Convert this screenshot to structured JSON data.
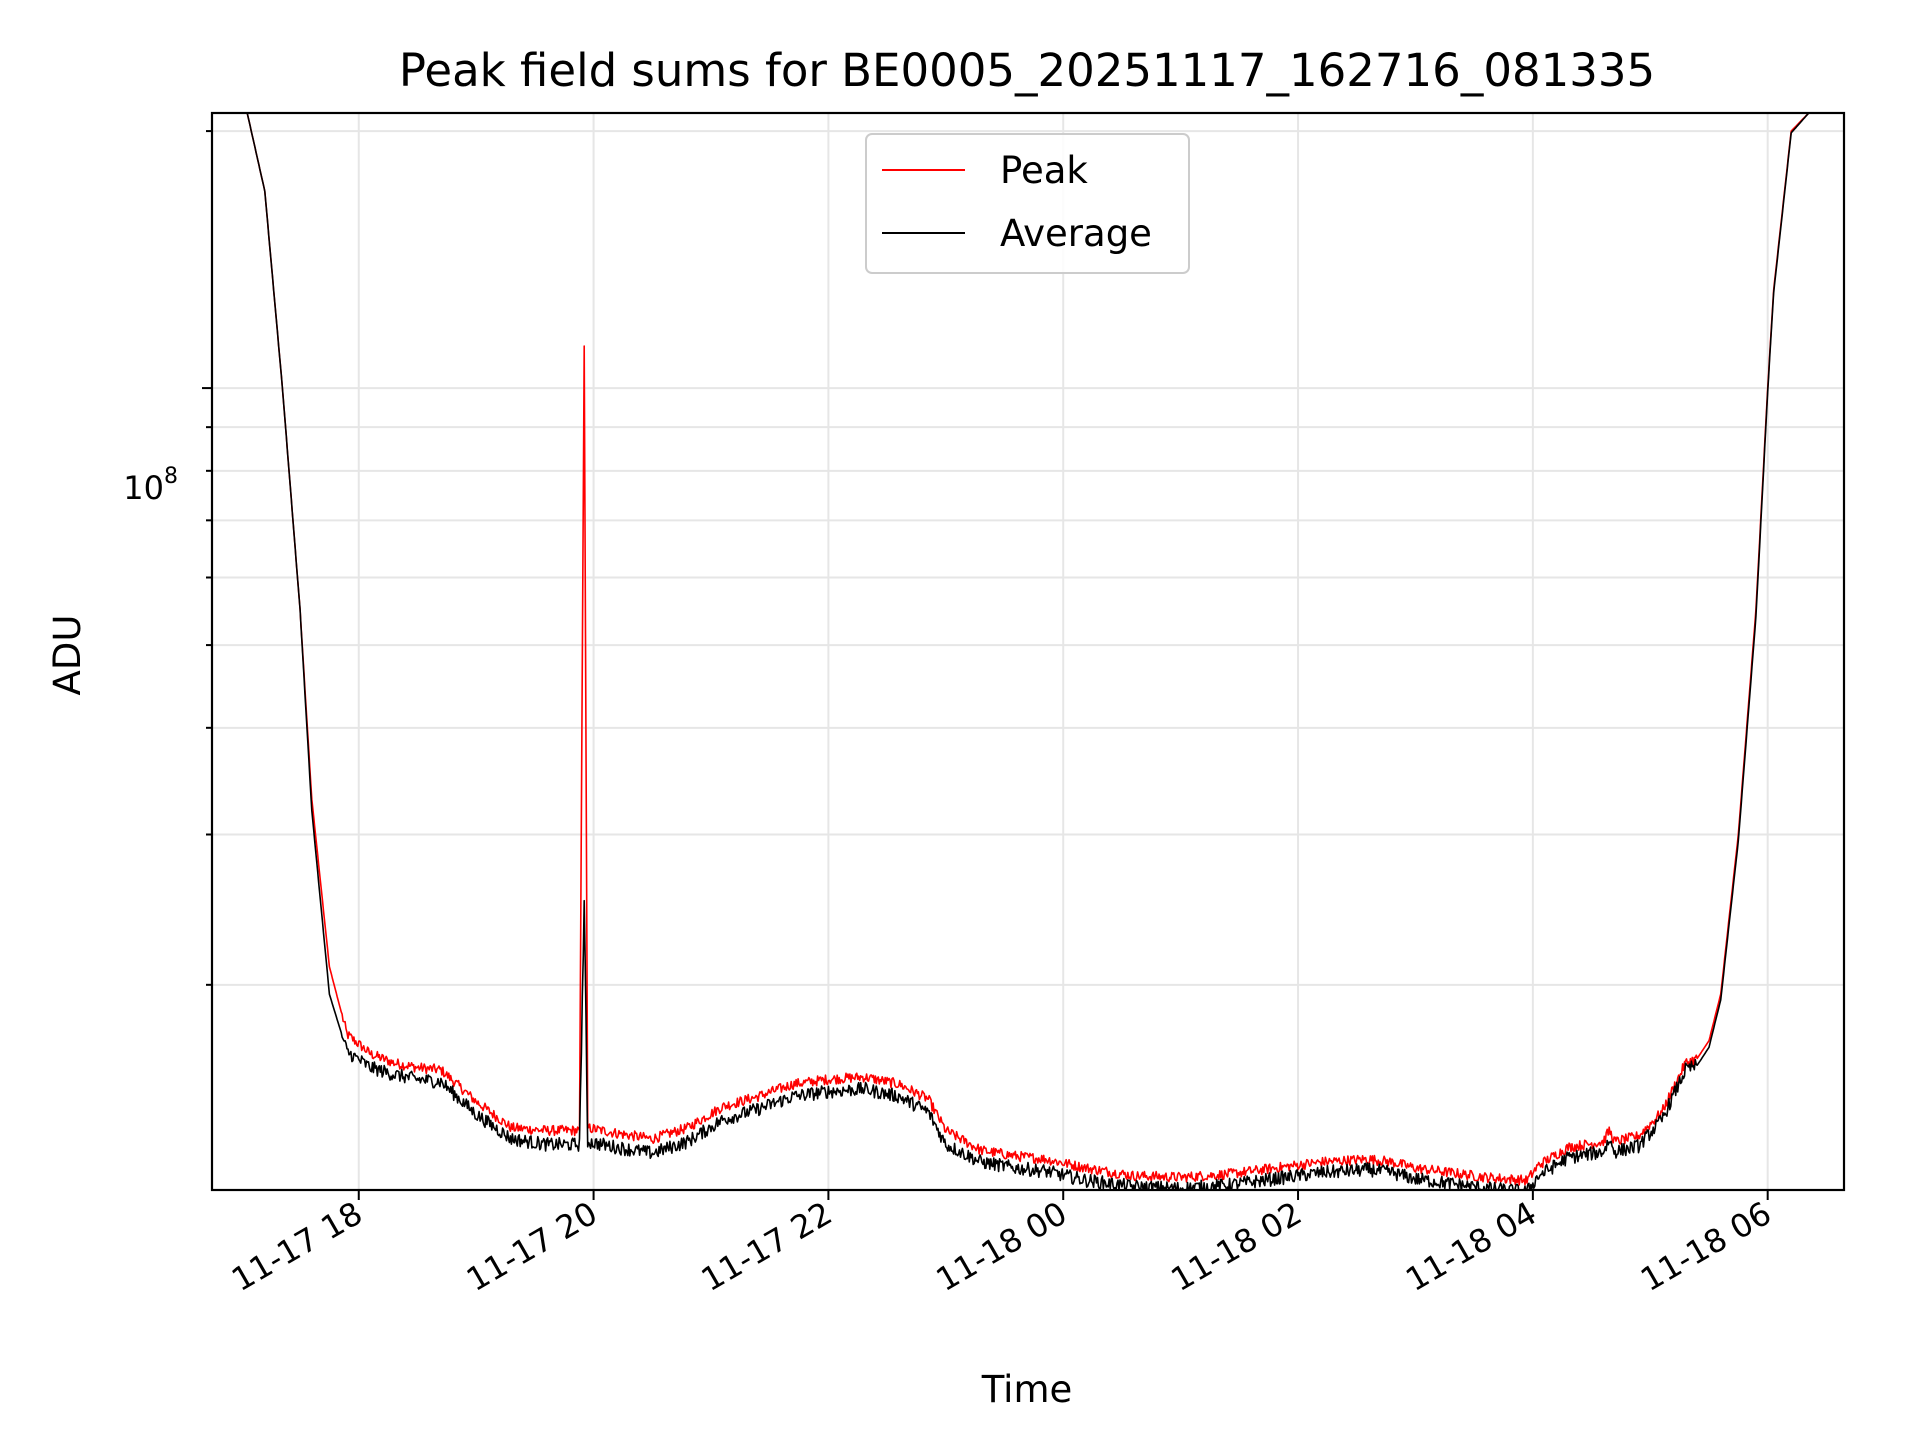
{
  "chart_data": {
    "type": "line",
    "title": "Peak field sums for BE0005_20251117_162716_081335",
    "xlabel": "Time",
    "ylabel": "ADU",
    "yscale": "log",
    "ylim": [
      11500000,
      210000000
    ],
    "xlim_hours": [
      16.75,
      30.65
    ],
    "grid": true,
    "legend_position": "top-center",
    "x_ticks": [
      {
        "label": "11-17 18",
        "hour": 18
      },
      {
        "label": "11-17 20",
        "hour": 20
      },
      {
        "label": "11-17 22",
        "hour": 22
      },
      {
        "label": "11-18 00",
        "hour": 24
      },
      {
        "label": "11-18 02",
        "hour": 26
      },
      {
        "label": "11-18 04",
        "hour": 28
      },
      {
        "label": "11-18 06",
        "hour": 30
      }
    ],
    "y_major_tick": {
      "base": "10",
      "exponent": "8",
      "value": 100000000
    },
    "y_minor_ticks": [
      20000000,
      30000000,
      40000000,
      50000000,
      60000000,
      70000000,
      80000000,
      90000000,
      200000000
    ],
    "series": [
      {
        "name": "Peak",
        "color": "#ff0000",
        "x_hours": [
          16.75,
          17.05,
          17.2,
          17.35,
          17.5,
          17.6,
          17.75,
          17.9,
          18.1,
          18.3,
          18.5,
          18.7,
          19.0,
          19.3,
          19.6,
          19.88,
          19.92,
          19.95,
          20.2,
          20.5,
          20.8,
          21.1,
          21.4,
          21.7,
          22.0,
          22.3,
          22.6,
          22.85,
          23.0,
          23.3,
          23.6,
          23.85,
          24.2,
          24.6,
          25.0,
          25.4,
          25.8,
          26.2,
          26.6,
          26.8,
          27.0,
          27.3,
          27.6,
          27.95,
          28.05,
          28.3,
          28.6,
          28.65,
          28.7,
          28.9,
          29.1,
          29.3,
          29.4,
          29.5,
          29.6,
          29.75,
          29.9,
          30.0,
          30.05,
          30.2,
          30.35,
          30.65
        ],
        "values": [
          210000000,
          210000000,
          170000000,
          100000000,
          55000000,
          33000000,
          21000000,
          17500000,
          16600000,
          16200000,
          16000000,
          15900000,
          14600000,
          13600000,
          13500000,
          13500000,
          112000000,
          13600000,
          13400000,
          13200000,
          13600000,
          14400000,
          14800000,
          15300000,
          15500000,
          15600000,
          15300000,
          14700000,
          13500000,
          12800000,
          12600000,
          12500000,
          12200000,
          11950000,
          11900000,
          12000000,
          12200000,
          12400000,
          12500000,
          12400000,
          12200000,
          12050000,
          11900000,
          11800000,
          12300000,
          12900000,
          13100000,
          13500000,
          13100000,
          13300000,
          14200000,
          16200000,
          16400000,
          17200000,
          19500000,
          30000000,
          55000000,
          100000000,
          130000000,
          200000000,
          210000000,
          210000000
        ]
      },
      {
        "name": "Average",
        "color": "#000000",
        "x_hours": [
          16.75,
          17.05,
          17.2,
          17.35,
          17.5,
          17.6,
          17.75,
          17.9,
          18.1,
          18.3,
          18.5,
          18.7,
          19.0,
          19.3,
          19.6,
          19.88,
          19.92,
          19.95,
          20.2,
          20.5,
          20.8,
          21.1,
          21.4,
          21.7,
          22.0,
          22.3,
          22.6,
          22.85,
          23.0,
          23.3,
          23.6,
          23.85,
          24.2,
          24.6,
          25.0,
          25.4,
          25.8,
          26.2,
          26.6,
          26.8,
          27.0,
          27.3,
          27.6,
          27.95,
          28.05,
          28.3,
          28.6,
          28.65,
          28.7,
          28.9,
          29.1,
          29.3,
          29.4,
          29.5,
          29.6,
          29.75,
          29.9,
          30.0,
          30.05,
          30.2,
          30.35,
          30.65
        ],
        "values": [
          210000000,
          210000000,
          170000000,
          100000000,
          55000000,
          32000000,
          19500000,
          16700000,
          16000000,
          15700000,
          15500000,
          15400000,
          14100000,
          13200000,
          13000000,
          13000000,
          25000000,
          13100000,
          12900000,
          12700000,
          13100000,
          13900000,
          14300000,
          14800000,
          15000000,
          15100000,
          14800000,
          14200000,
          13000000,
          12400000,
          12200000,
          12100000,
          11800000,
          11600000,
          11550000,
          11650000,
          11850000,
          12050000,
          12150000,
          12050000,
          11850000,
          11700000,
          11550000,
          11450000,
          11950000,
          12550000,
          12750000,
          13150000,
          12750000,
          12950000,
          13900000,
          15900000,
          16100000,
          16900000,
          19200000,
          29500000,
          54000000,
          99000000,
          129000000,
          199000000,
          210000000,
          210000000
        ]
      }
    ]
  }
}
